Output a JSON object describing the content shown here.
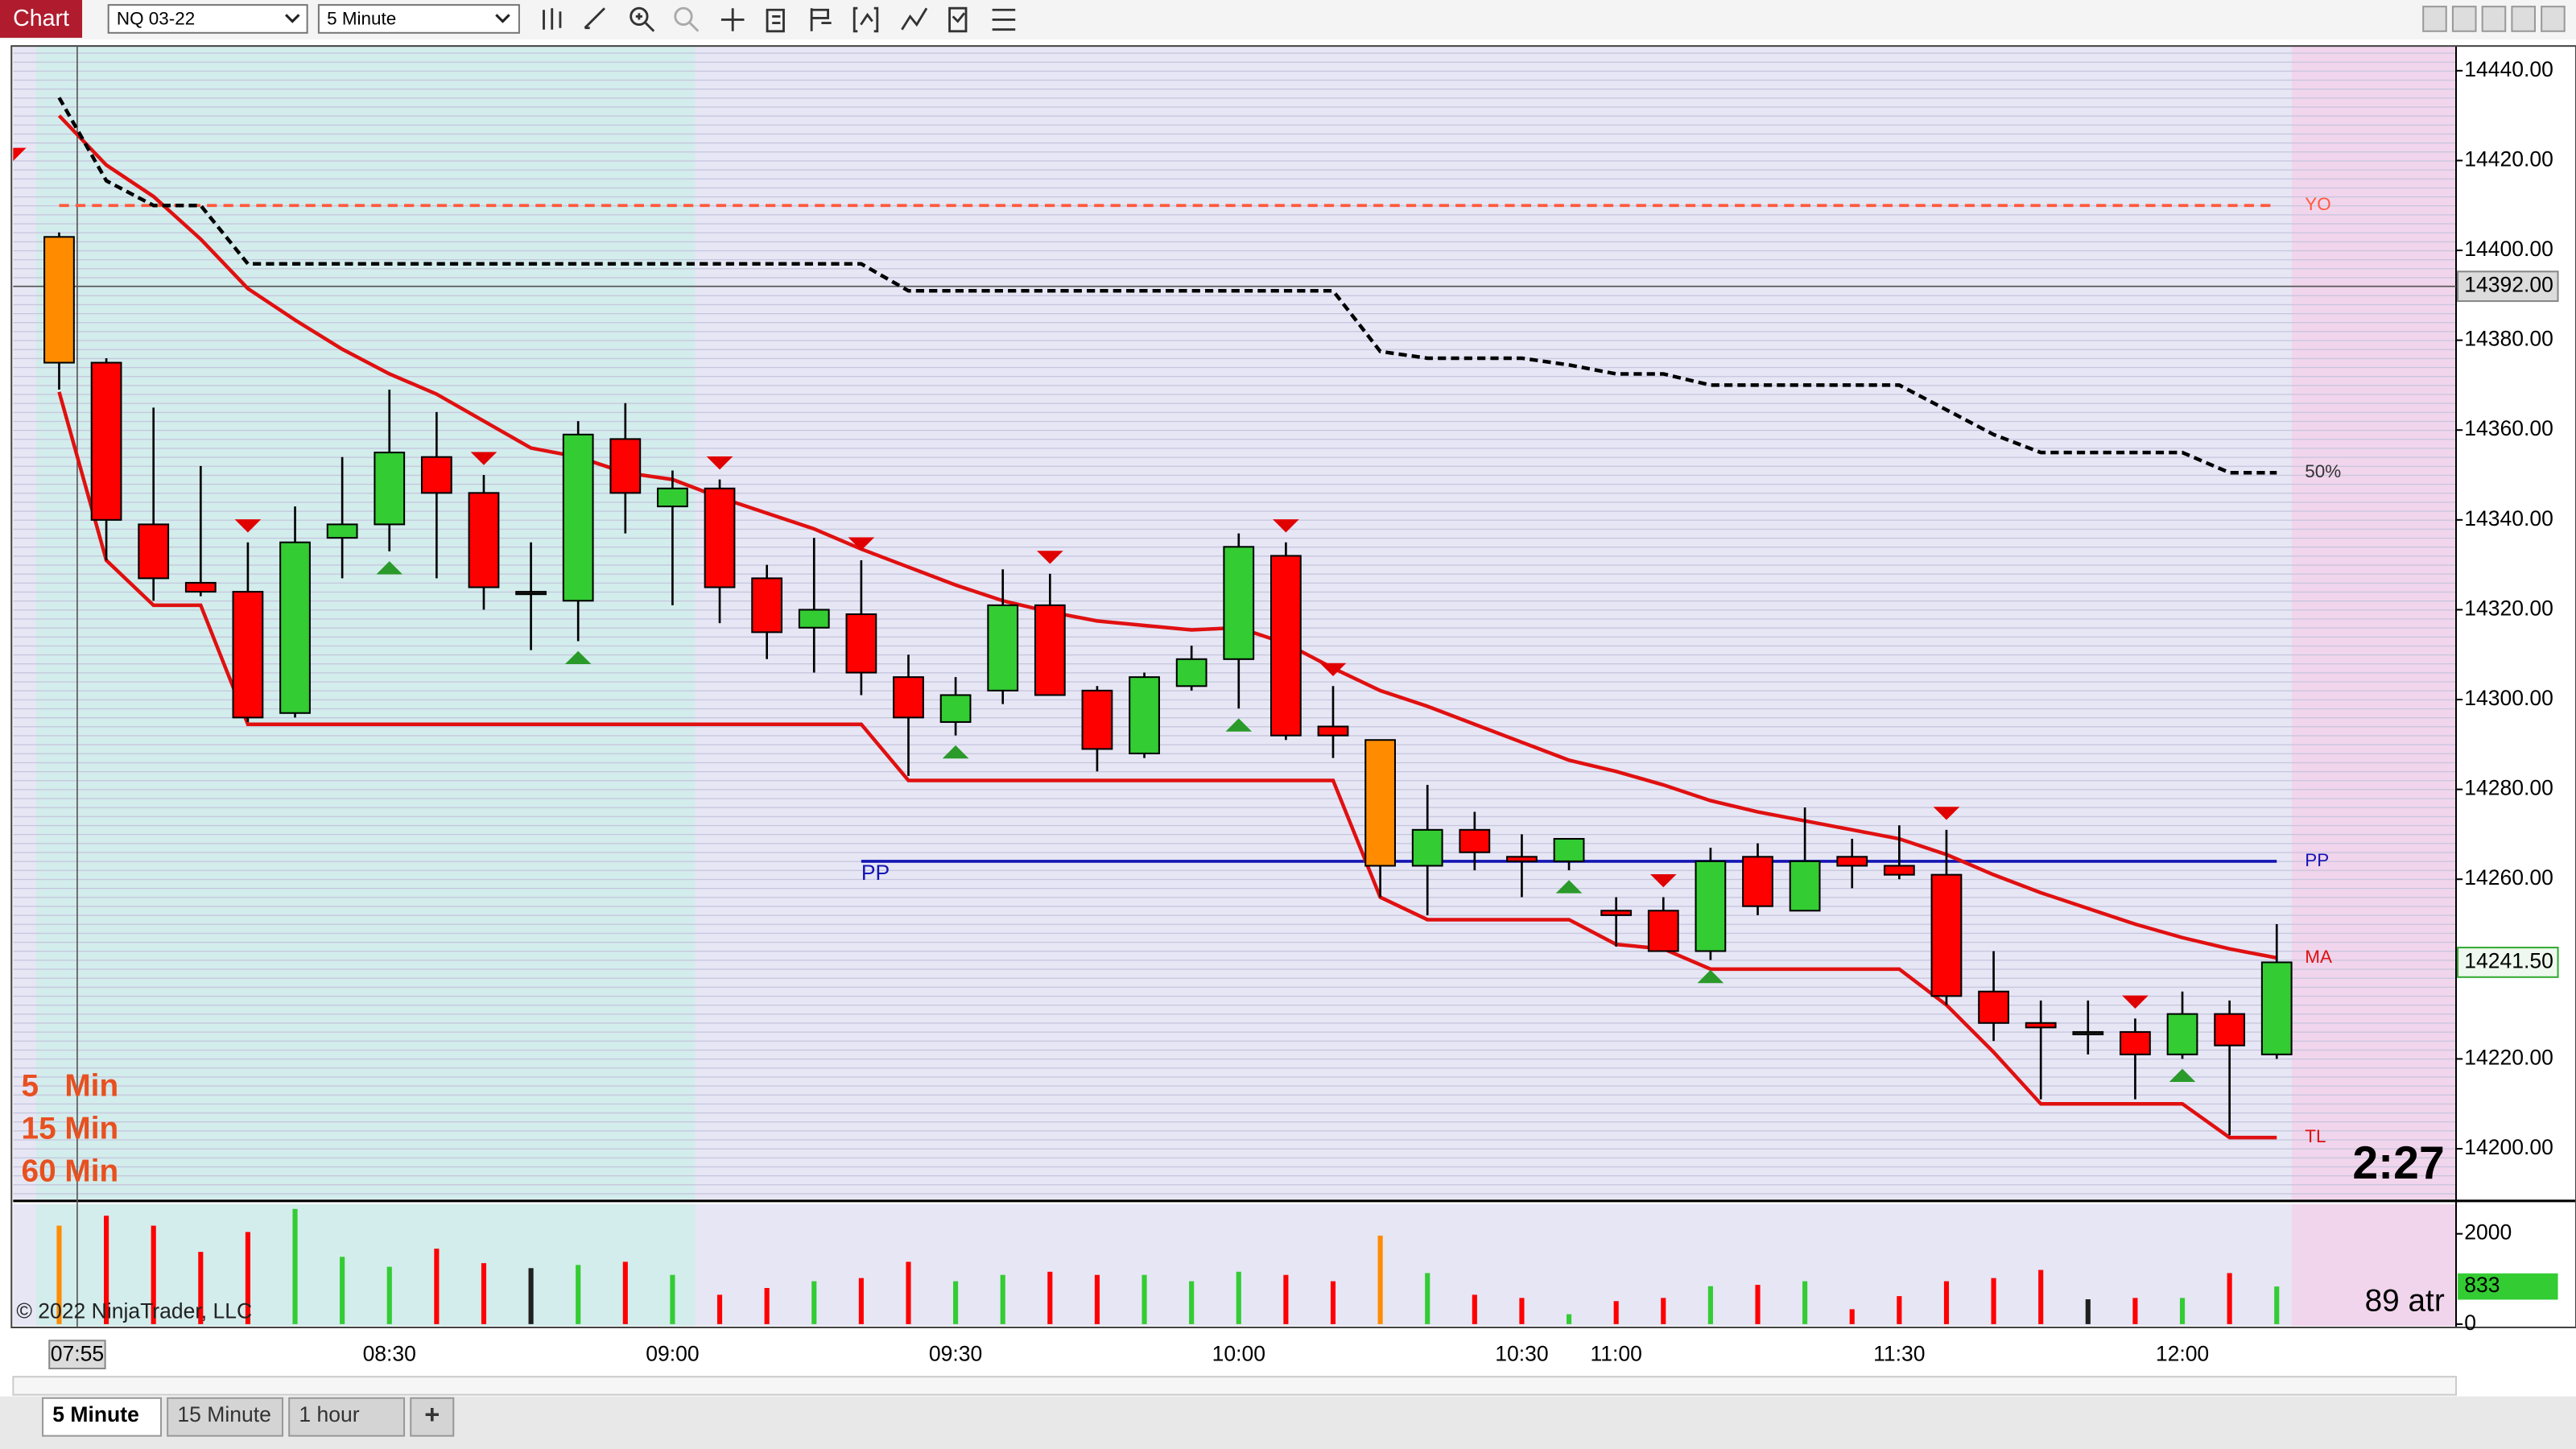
{
  "toolbar": {
    "title": "Chart",
    "instrument": "NQ 03-22",
    "interval": "5 Minute"
  },
  "tabs": [
    "5 Minute",
    "15 Minute",
    "1 hour",
    "+"
  ],
  "chart_data": {
    "type": "candlestick",
    "categories": [
      "07:55",
      null,
      null,
      null,
      null,
      null,
      null,
      "08:30",
      null,
      null,
      null,
      null,
      null,
      "09:00",
      null,
      null,
      null,
      null,
      null,
      "09:30",
      null,
      null,
      null,
      null,
      null,
      "10:00",
      null,
      null,
      null,
      null,
      null,
      "10:30",
      null,
      "11:00",
      null,
      null,
      null,
      null,
      null,
      "11:30",
      null,
      null,
      null,
      null,
      null,
      "12:00",
      null,
      null
    ],
    "open": [
      14403,
      14375,
      14339,
      14326,
      14324,
      14297,
      14336,
      14339,
      14354,
      14346,
      14324,
      14322,
      14358,
      14343,
      14347,
      14327,
      14316,
      14319,
      14305,
      14295,
      14302,
      14321,
      14302,
      14288,
      14303,
      14309,
      14332,
      14294,
      14291,
      14263,
      14271,
      14265,
      14264,
      14253,
      14253,
      14244,
      14265,
      14253,
      14265,
      14263,
      14261,
      14235,
      14228,
      14226,
      14226,
      14221,
      14230,
      14221
    ],
    "high": [
      14404,
      14376,
      14365,
      14352,
      14335,
      14343,
      14354,
      14369,
      14364,
      14350,
      14335,
      14362,
      14366,
      14351,
      14349,
      14330,
      14336,
      14331,
      14310,
      14305,
      14329,
      14328,
      14303,
      14306,
      14312,
      14337,
      14335,
      14303,
      14291,
      14281,
      14275,
      14270,
      14269,
      14256,
      14256,
      14267,
      14268,
      14276,
      14269,
      14272,
      14271,
      14244,
      14233,
      14233,
      14229,
      14235,
      14233,
      14250
    ],
    "low": [
      14369,
      14331,
      14322,
      14323,
      14295,
      14296,
      14327,
      14333,
      14327,
      14320,
      14311,
      14313,
      14337,
      14321,
      14317,
      14309,
      14306,
      14301,
      14283,
      14292,
      14299,
      14301,
      14284,
      14287,
      14302,
      14298,
      14291,
      14287,
      14256,
      14252,
      14262,
      14256,
      14262,
      14245,
      14244,
      14242,
      14252,
      14253,
      14258,
      14260,
      14232,
      14224,
      14211,
      14221,
      14211,
      14220,
      14203,
      14220
    ],
    "close": [
      14375,
      14340,
      14327,
      14324,
      14296,
      14335,
      14339,
      14355,
      14346,
      14325,
      14324,
      14359,
      14346,
      14347,
      14325,
      14315,
      14320,
      14306,
      14296,
      14301,
      14321,
      14301,
      14289,
      14305,
      14309,
      14334,
      14292,
      14292,
      14263,
      14271,
      14266,
      14264,
      14269,
      14252,
      14244,
      14264,
      14254,
      14264,
      14263,
      14261,
      14234,
      14228,
      14227,
      14226,
      14221,
      14230,
      14223,
      14241.5
    ],
    "up_color": "#33cc33",
    "down_color": "#ff0000",
    "doji_color": "#202020",
    "marked_color": "#ff8c00",
    "marked_bars": [
      0,
      28
    ],
    "ylim": [
      14188.75,
      14445.5
    ],
    "yticks": [
      {
        "value": 14440,
        "label": "14440.00"
      },
      {
        "value": 14420,
        "label": "14420.00"
      },
      {
        "value": 14400,
        "label": "14400.00"
      },
      {
        "value": 14380,
        "label": "14380.00"
      },
      {
        "value": 14360,
        "label": "14360.00"
      },
      {
        "value": 14340,
        "label": "14340.00"
      },
      {
        "value": 14320,
        "label": "14320.00"
      },
      {
        "value": 14300,
        "label": "14300.00"
      },
      {
        "value": 14280,
        "label": "14280.00"
      },
      {
        "value": 14260,
        "label": "14260.00"
      },
      {
        "value": 14240,
        "label": "14240.00"
      },
      {
        "value": 14220,
        "label": "14220.00"
      },
      {
        "value": 14200,
        "label": "14200.00"
      }
    ],
    "lines": [
      {
        "name": "MA",
        "color": "#e01010",
        "dashed": false,
        "values": [
          14430,
          14419,
          14412,
          14402.5,
          14391.5,
          14384.5,
          14378,
          14372.5,
          14368,
          14362,
          14356,
          14354,
          14350.5,
          14349,
          14345,
          14341.5,
          14338,
          14333.5,
          14329.5,
          14325.5,
          14322,
          14319.5,
          14317.5,
          14316.5,
          14315.5,
          14316,
          14312.5,
          14307,
          14302,
          14298.5,
          14294.5,
          14290.5,
          14286.5,
          14284,
          14281,
          14277.5,
          14275,
          14273,
          14271,
          14269,
          14265.5,
          14261,
          14257,
          14253.5,
          14250,
          14247,
          14244.5,
          14242.5
        ]
      },
      {
        "name": "TL",
        "color": "#e01010",
        "dashed": false,
        "values": [
          14368.5,
          14331,
          14321,
          14321,
          14294.5,
          14294.5,
          14294.5,
          14294.5,
          14294.5,
          14294.5,
          14294.5,
          14294.5,
          14294.5,
          14294.5,
          14294.5,
          14294.5,
          14294.5,
          14294.5,
          14282,
          14282,
          14282,
          14282,
          14282,
          14282,
          14282,
          14282,
          14282,
          14282,
          14256,
          14251,
          14251,
          14251,
          14251,
          14245.5,
          14244.5,
          14240,
          14240,
          14240,
          14240,
          14240,
          14232,
          14221.5,
          14210,
          14210,
          14210,
          14210,
          14202.5,
          14202.5
        ]
      },
      {
        "name": "50%",
        "color": "#000000",
        "dashed": true,
        "values": [
          14434,
          14415.5,
          14410,
          14410,
          14397,
          14397,
          14397,
          14397,
          14397,
          14397,
          14397,
          14397,
          14397,
          14397,
          14397,
          14397,
          14397,
          14397,
          14391,
          14391,
          14391,
          14391,
          14391,
          14391,
          14391,
          14391,
          14391,
          14391,
          14377.5,
          14376,
          14376,
          14376,
          14374.5,
          14372.5,
          14372.5,
          14370,
          14370,
          14370,
          14370,
          14370,
          14364.5,
          14359,
          14355,
          14355,
          14355,
          14355,
          14350.5,
          14350.5
        ]
      }
    ],
    "levels": [
      {
        "name": "YO",
        "value": 14410,
        "color": "#ff5a3c",
        "start": 0,
        "label_at_start": false
      },
      {
        "name": "PP",
        "value": 14264,
        "color": "#1414b4",
        "start": 17,
        "label_at_start": true
      }
    ],
    "signals": {
      "down": [
        4,
        9,
        14,
        17,
        21,
        26,
        27,
        34,
        40,
        44
      ],
      "up": [
        7,
        11,
        19,
        25,
        32,
        35,
        45
      ]
    },
    "crosshair": {
      "value": 14392,
      "label": "14392.00",
      "category": 0
    },
    "last_price": {
      "value": 14241.5,
      "label": "14241.50"
    },
    "timer": "2:27",
    "timeframes": [
      "5   Min",
      "15 Min",
      "60 Min"
    ],
    "copyright": "© 2022 NinjaTrader, LLC",
    "volume": {
      "values": [
        2180,
        2400,
        2180,
        1600,
        2040,
        2550,
        1490,
        1270,
        1670,
        1350,
        1240,
        1310,
        1380,
        1090,
        650,
        800,
        950,
        1020,
        1380,
        950,
        1090,
        1160,
        1090,
        1090,
        950,
        1160,
        1090,
        950,
        1960,
        1130,
        650,
        580,
        220,
        510,
        580,
        840,
        870,
        950,
        330,
        620,
        950,
        1020,
        1200,
        550,
        580,
        580,
        1130,
        833
      ],
      "ylim": [
        -73,
        2655
      ],
      "yticks": [
        0,
        2000
      ],
      "last": 833,
      "indicator_label": "89 atr"
    }
  }
}
